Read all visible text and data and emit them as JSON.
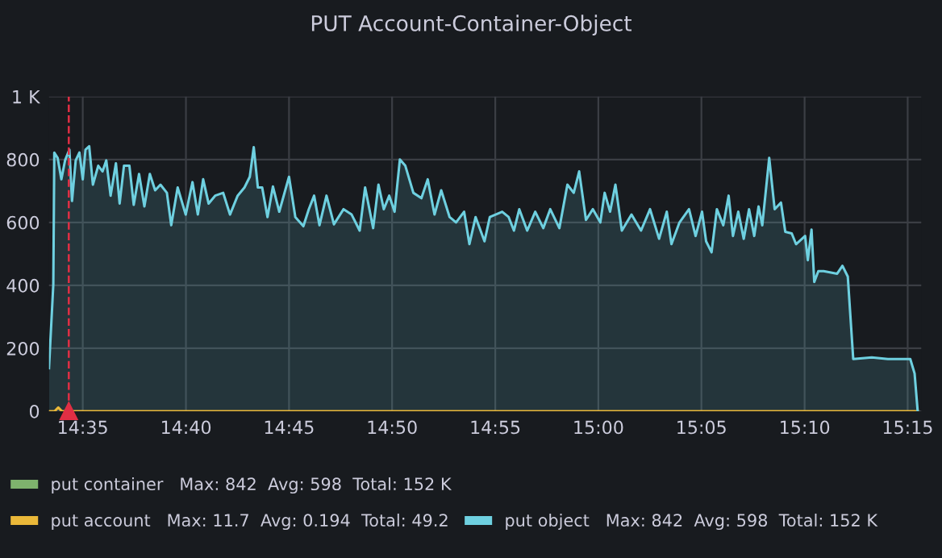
{
  "chart_data": {
    "type": "area",
    "title": "PUT Account-Container-Object",
    "xlim": [
      14.556,
      15.261
    ],
    "xticks": [
      {
        "value": 14.5833,
        "label": "14:35"
      },
      {
        "value": 14.6667,
        "label": "14:40"
      },
      {
        "value": 14.75,
        "label": "14:45"
      },
      {
        "value": 14.8333,
        "label": "14:50"
      },
      {
        "value": 14.9167,
        "label": "14:55"
      },
      {
        "value": 15.0,
        "label": "15:00"
      },
      {
        "value": 15.0833,
        "label": "15:05"
      },
      {
        "value": 15.1667,
        "label": "15:10"
      },
      {
        "value": 15.25,
        "label": "15:15"
      }
    ],
    "ylim": [
      0,
      1000
    ],
    "yticks": [
      0,
      200,
      400,
      600,
      800,
      {
        "value": 1000,
        "label": "1 K"
      }
    ],
    "grid": true,
    "legend": "bottom",
    "ref_lines": [
      {
        "axis": "x",
        "value": 14.572,
        "label": null,
        "color": "#e02f44",
        "line_style": "dashed"
      }
    ],
    "series": [
      {
        "name": "put container   Max: 842  Avg: 598  Total: 152 K",
        "color": "#7eb26d",
        "type": "line"
      },
      {
        "name": "put account   Max: 11.7  Avg: 0.194  Total: 49.2",
        "color": "#eab839",
        "type": "line",
        "x": [
          14.556,
          14.5605,
          14.5635,
          14.5665,
          15.2581
        ],
        "values": [
          0,
          0,
          11.7,
          0,
          0
        ]
      },
      {
        "name": "put object   Max: 842  Avg: 598  Total: 152 K",
        "color": "#6ed0e0",
        "x": [
          14.556,
          14.5595,
          14.5603,
          14.563,
          14.566,
          14.569,
          14.5725,
          14.5746,
          14.5776,
          14.5806,
          14.5833,
          14.5855,
          14.5885,
          14.5915,
          14.5958,
          14.5993,
          14.6023,
          14.6058,
          14.6101,
          14.6131,
          14.6166,
          14.621,
          14.6245,
          14.6288,
          14.6331,
          14.6375,
          14.6418,
          14.6461,
          14.6513,
          14.6548,
          14.66,
          14.6665,
          14.672,
          14.6763,
          14.6806,
          14.685,
          14.6903,
          14.6968,
          14.7023,
          14.7085,
          14.714,
          14.7183,
          14.7215,
          14.7248,
          14.7283,
          14.7326,
          14.737,
          14.7421,
          14.75,
          14.7551,
          14.7616,
          14.766,
          14.7703,
          14.7746,
          14.7803,
          14.7863,
          14.7941,
          14.8006,
          14.8071,
          14.8115,
          14.818,
          14.8223,
          14.8266,
          14.831,
          14.8353,
          14.8396,
          14.844,
          14.8505,
          14.857,
          14.8621,
          14.8676,
          14.873,
          14.8798,
          14.885,
          14.8915,
          14.8958,
          14.9008,
          14.908,
          14.9123,
          14.9223,
          14.9275,
          14.9318,
          14.9361,
          14.9425,
          14.949,
          14.9555,
          14.9611,
          14.9685,
          14.975,
          14.9801,
          14.9845,
          14.99,
          14.9956,
          15.0016,
          15.0051,
          15.0095,
          15.0138,
          15.019,
          15.0268,
          15.0345,
          15.0418,
          15.0491,
          15.0553,
          15.0591,
          15.0656,
          15.0733,
          15.0786,
          15.0838,
          15.0871,
          15.0915,
          15.0958,
          15.101,
          15.1053,
          15.1088,
          15.1131,
          15.1175,
          15.1218,
          15.126,
          15.1295,
          15.1325,
          15.1381,
          15.1425,
          15.1476,
          15.1511,
          15.1563,
          15.1598,
          15.1671,
          15.1693,
          15.1723,
          15.1745,
          15.1778,
          15.1821,
          15.193,
          15.1973,
          15.2016,
          15.206,
          15.221,
          15.234,
          15.2426,
          15.2521,
          15.2556,
          15.2581
        ],
        "values": [
          137,
          403,
          822,
          805,
          737,
          797,
          831,
          668,
          797,
          822,
          737,
          831,
          842,
          720,
          780,
          762,
          797,
          685,
          788,
          660,
          780,
          780,
          656,
          754,
          651,
          754,
          702,
          720,
          694,
          591,
          711,
          625,
          728,
          625,
          737,
          660,
          685,
          694,
          625,
          685,
          711,
          745,
          839,
          711,
          711,
          617,
          714,
          634,
          745,
          617,
          588,
          642,
          685,
          591,
          685,
          594,
          642,
          625,
          574,
          711,
          582,
          720,
          642,
          685,
          634,
          800,
          780,
          694,
          677,
          737,
          625,
          702,
          617,
          600,
          634,
          531,
          617,
          540,
          617,
          634,
          617,
          574,
          642,
          574,
          634,
          582,
          642,
          582,
          720,
          694,
          762,
          608,
          642,
          600,
          694,
          634,
          720,
          574,
          625,
          574,
          642,
          548,
          634,
          531,
          600,
          642,
          557,
          634,
          540,
          505,
          642,
          591,
          685,
          557,
          634,
          548,
          642,
          557,
          651,
          591,
          805,
          642,
          663,
          570,
          565,
          531,
          557,
          480,
          577,
          411,
          445,
          445,
          437,
          462,
          428,
          166,
          171,
          166,
          166,
          166,
          120,
          0
        ]
      }
    ]
  }
}
